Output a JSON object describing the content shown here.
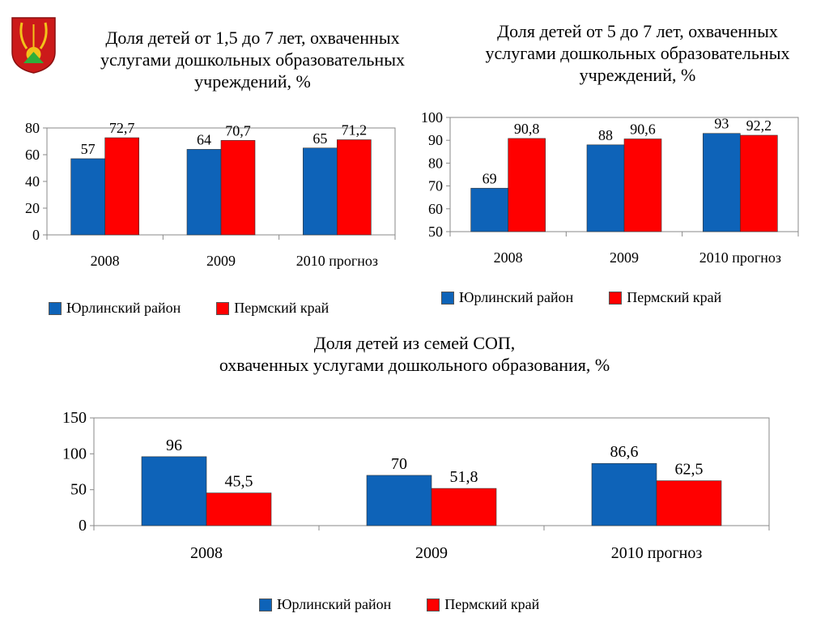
{
  "colors": {
    "yurla": "#0E63B8",
    "perm": "#FF0000",
    "coat_bg": "#CC1A1A",
    "coat_gold": "#F2C21A",
    "coat_green": "#2FAE3A"
  },
  "coat_icon": "coat-of-arms-icon",
  "legend": {
    "series": [
      "Юрлинский район",
      "Пермский край"
    ]
  },
  "chart_data": [
    {
      "type": "bar",
      "title": "Доля детей от 1,5 до 7 лет, охваченных\nуслугами дошкольных образовательных\nучреждений, %",
      "categories": [
        "2008",
        "2009",
        "2010 прогноз"
      ],
      "series": [
        {
          "name": "Юрлинский район",
          "values": [
            57,
            64,
            65
          ],
          "labels": [
            "57",
            "64",
            "65"
          ]
        },
        {
          "name": "Пермский край",
          "values": [
            72.7,
            70.7,
            71.2
          ],
          "labels": [
            "72,7",
            "70,7",
            "71,2"
          ]
        }
      ],
      "ylim": [
        0,
        80
      ],
      "yticks": [
        0,
        20,
        40,
        60,
        80
      ],
      "grid": false,
      "legend": "bottom"
    },
    {
      "type": "bar",
      "title": "Доля детей от 5 до 7 лет, охваченных\nуслугами дошкольных образовательных\nучреждений, %",
      "categories": [
        "2008",
        "2009",
        "2010 прогноз"
      ],
      "series": [
        {
          "name": "Юрлинский район",
          "values": [
            69,
            88,
            93
          ],
          "labels": [
            "69",
            "88",
            "93"
          ]
        },
        {
          "name": "Пермский край",
          "values": [
            90.8,
            90.6,
            92.2
          ],
          "labels": [
            "90,8",
            "90,6",
            "92,2"
          ]
        }
      ],
      "ylim": [
        50,
        100
      ],
      "yticks": [
        50,
        60,
        70,
        80,
        90,
        100
      ],
      "grid": false,
      "legend": "bottom"
    },
    {
      "type": "bar",
      "title": "Доля детей из семей СОП,\nохваченных услугами дошкольного образования, %",
      "categories": [
        "2008",
        "2009",
        "2010 прогноз"
      ],
      "series": [
        {
          "name": "Юрлинский район",
          "values": [
            96,
            70,
            86.6
          ],
          "labels": [
            "96",
            "70",
            "86,6"
          ]
        },
        {
          "name": "Пермский край",
          "values": [
            45.5,
            51.8,
            62.5
          ],
          "labels": [
            "45,5",
            "51,8",
            "62,5"
          ]
        }
      ],
      "ylim": [
        0,
        150
      ],
      "yticks": [
        0,
        50,
        100,
        150
      ],
      "grid": false,
      "legend": "bottom"
    }
  ]
}
